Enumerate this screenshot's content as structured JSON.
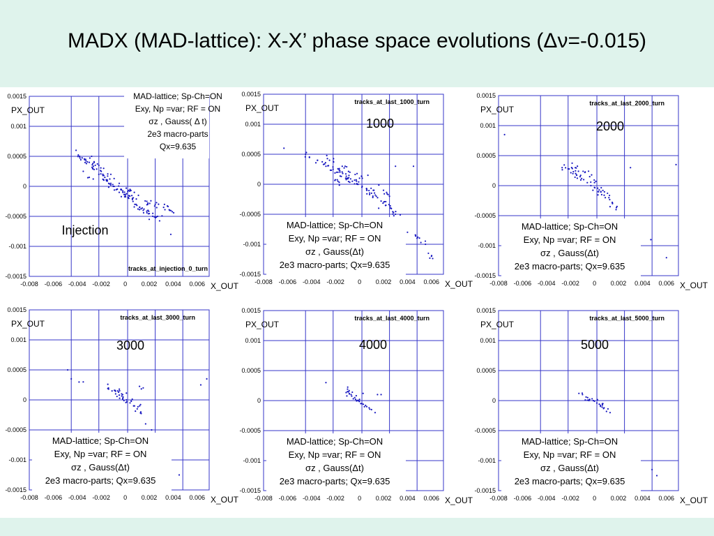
{
  "slide": {
    "title": "MADX (MAD-lattice): X-X’ phase space evolutions (Δν=-0.015)"
  },
  "colors": {
    "background": "#e4f5ef",
    "grid": "#3535c8",
    "points": "#1818c0",
    "axis_text": "#000000"
  },
  "axes": {
    "x_label": "X_OUT",
    "y_label": "PX_OUT",
    "xlim": [
      -0.008,
      0.007
    ],
    "ylim": [
      -0.0015,
      0.0015
    ],
    "x_ticks": [
      "-0.008",
      "-0.006",
      "-0.004",
      "-0.002",
      "0",
      "0.002",
      "0.004",
      "0.006"
    ],
    "y_ticks": [
      "0.0015",
      "0.001",
      "0.0005",
      "0",
      "-0.0005",
      "-0.001",
      "-0.0015"
    ],
    "x_tick_values": [
      -0.008,
      -0.006,
      -0.004,
      -0.002,
      0,
      0.002,
      0.004,
      0.006
    ],
    "y_tick_values": [
      0.0015,
      0.001,
      0.0005,
      0,
      -0.0005,
      -0.001,
      -0.0015
    ],
    "x_grid": [
      -0.0045,
      -0.0022,
      0.0002,
      0.0025,
      0.0048
    ],
    "y_grid": [
      0.0015,
      0.001,
      0.0005,
      0,
      -0.0005,
      -0.001,
      -0.0015
    ]
  },
  "chart_data": [
    {
      "type": "scatter",
      "plot_title": "tracks_at_injection_0_turn",
      "turn_label": "Injection",
      "info_lines": [
        "MAD-lattice; Sp-Ch=ON",
        "Exy, Np =var; RF = ON",
        "σz , Gauss( Δ t)",
        "2e3 macro-parts",
        "Qx=9.635"
      ],
      "xlabel": "X_OUT",
      "ylabel": "PX_OUT",
      "xlim": [
        -0.008,
        0.007
      ],
      "ylim": [
        -0.0015,
        0.0015
      ],
      "points": [
        [
          -0.0041,
          0.0006
        ],
        [
          -0.0038,
          0.0005
        ],
        [
          -0.0033,
          0.00045
        ],
        [
          -0.003,
          0.0004
        ],
        [
          -0.0027,
          0.0003
        ],
        [
          -0.0025,
          0.00035
        ],
        [
          -0.0022,
          0.0002
        ],
        [
          -0.002,
          0.00025
        ],
        [
          -0.0017,
          0.00015
        ],
        [
          -0.0015,
          0.0001
        ],
        [
          -0.0012,
          5e-05
        ],
        [
          -0.001,
          0.0
        ],
        [
          -0.0007,
          -5e-05
        ],
        [
          -0.0005,
          -0.0001
        ],
        [
          -0.0002,
          -0.0001
        ],
        [
          0.0,
          -0.00015
        ],
        [
          0.0003,
          -0.0002
        ],
        [
          0.0006,
          -0.0002
        ],
        [
          0.0009,
          -0.0003
        ],
        [
          0.0012,
          -0.00035
        ],
        [
          0.0015,
          -0.0004
        ],
        [
          0.0019,
          -0.0004
        ],
        [
          0.0023,
          -0.00045
        ],
        [
          0.0027,
          -0.0005
        ],
        [
          0.0032,
          -0.00035
        ],
        [
          0.0037,
          -0.0004
        ],
        [
          -0.003,
          0.00015
        ],
        [
          -0.0022,
          0.00035
        ],
        [
          -0.0012,
          0.0002
        ],
        [
          -0.0005,
          5e-05
        ],
        [
          0.0004,
          -5e-05
        ],
        [
          0.0011,
          -0.00015
        ],
        [
          0.0018,
          -0.00025
        ],
        [
          0.0025,
          -0.0003
        ],
        [
          -0.0035,
          0.00025
        ],
        [
          -0.0018,
          0.0003
        ],
        [
          0.0008,
          -0.0003
        ],
        [
          0.002,
          -0.00055
        ],
        [
          -0.0028,
          0.0005
        ],
        [
          0.0038,
          -0.0008
        ]
      ]
    },
    {
      "type": "scatter",
      "plot_title": "tracks_at_last_1000_turn",
      "turn_label": "1000",
      "info_lines": [
        "MAD-lattice; Sp-Ch=ON",
        "Exy, Np =var; RF = ON",
        "σz , Gauss(Δt)",
        "2e3 macro-parts; Qx=9.635"
      ],
      "xlabel": "X_OUT",
      "ylabel": "PX_OUT",
      "xlim": [
        -0.008,
        0.007
      ],
      "ylim": [
        -0.0015,
        0.0015
      ],
      "points": [
        [
          -0.0063,
          0.0006
        ],
        [
          -0.0045,
          0.0005
        ],
        [
          -0.0035,
          0.0004
        ],
        [
          -0.0028,
          0.0003
        ],
        [
          -0.0022,
          0.00025
        ],
        [
          -0.0018,
          0.0002
        ],
        [
          -0.0014,
          0.00018
        ],
        [
          -0.001,
          0.0001
        ],
        [
          -0.0006,
          5e-05
        ],
        [
          -0.0002,
          0.0
        ],
        [
          0.0002,
          -5e-05
        ],
        [
          0.0006,
          -0.0001
        ],
        [
          0.001,
          -0.00015
        ],
        [
          0.0014,
          -0.0002
        ],
        [
          0.0018,
          -0.00028
        ],
        [
          0.0022,
          -0.00035
        ],
        [
          0.0026,
          -0.0004
        ],
        [
          0.003,
          -0.0005
        ],
        [
          0.0034,
          -0.0006
        ],
        [
          0.004,
          -0.0008
        ],
        [
          0.0048,
          -0.0009
        ],
        [
          0.0055,
          -0.001
        ],
        [
          0.006,
          -0.0012
        ],
        [
          -0.0025,
          0.0004
        ],
        [
          -0.0012,
          0.0003
        ],
        [
          0.0,
          0.0001
        ],
        [
          0.0012,
          -0.0001
        ],
        [
          0.002,
          -0.0001
        ],
        [
          -0.0018,
          5e-05
        ],
        [
          0.0016,
          -0.0004
        ],
        [
          0.0007,
          0.00015
        ],
        [
          0.003,
          0.0003
        ],
        [
          0.0045,
          0.0003
        ],
        [
          -0.0008,
          0.0002
        ],
        [
          0.0025,
          -0.0002
        ]
      ]
    },
    {
      "type": "scatter",
      "plot_title": "tracks_at_last_2000_turn",
      "turn_label": "2000",
      "info_lines": [
        "MAD-lattice; Sp-Ch=ON",
        "Exy, Np =var; RF = ON",
        "σz , Gauss(Δt)",
        "2e3 macro-parts; Qx=9.635"
      ],
      "xlabel": "X_OUT",
      "ylabel": "PX_OUT",
      "xlim": [
        -0.008,
        0.007
      ],
      "ylim": [
        -0.0015,
        0.0015
      ],
      "points": [
        [
          -0.0075,
          0.00085
        ],
        [
          -0.0027,
          0.0003
        ],
        [
          -0.0022,
          0.00028
        ],
        [
          -0.0018,
          0.0002
        ],
        [
          -0.0015,
          0.00018
        ],
        [
          -0.0012,
          0.00015
        ],
        [
          -0.0009,
          0.0001
        ],
        [
          -0.0006,
          5e-05
        ],
        [
          -0.0003,
          0.0
        ],
        [
          0.0,
          -3e-05
        ],
        [
          0.0003,
          -0.0001
        ],
        [
          0.0006,
          -0.00015
        ],
        [
          0.0009,
          -0.0002
        ],
        [
          0.0012,
          -0.0002
        ],
        [
          0.0015,
          -0.0003
        ],
        [
          -0.0016,
          0.0003
        ],
        [
          -0.0008,
          0.00022
        ],
        [
          0.0,
          5e-05
        ],
        [
          0.0007,
          -8e-05
        ],
        [
          -0.0004,
          0.00015
        ],
        [
          0.0018,
          -0.0004
        ],
        [
          0.003,
          0.0003
        ],
        [
          0.0068,
          0.00035
        ],
        [
          0.0047,
          -0.0009
        ],
        [
          0.006,
          -0.0012
        ],
        [
          0.0013,
          -0.00035
        ]
      ]
    },
    {
      "type": "scatter",
      "plot_title": "tracks_at_last_3000_turn",
      "turn_label": "3000",
      "info_lines": [
        "MAD-lattice; Sp-Ch=ON",
        "Exy, Np =var; RF = ON",
        "σz , Gauss(Δt)",
        "2e3 macro-parts; Qx=9.635"
      ],
      "xlabel": "X_OUT",
      "ylabel": "PX_OUT",
      "xlim": [
        -0.008,
        0.007
      ],
      "ylim": [
        -0.0015,
        0.0015
      ],
      "points": [
        [
          -0.0048,
          0.0005
        ],
        [
          -0.0035,
          0.0003
        ],
        [
          -0.0014,
          0.0002
        ],
        [
          -0.0011,
          0.00015
        ],
        [
          -0.0008,
          0.0001
        ],
        [
          -0.0005,
          8e-05
        ],
        [
          -0.0002,
          3e-05
        ],
        [
          0.0001,
          0.0
        ],
        [
          0.0004,
          -5e-05
        ],
        [
          0.0007,
          -0.0001
        ],
        [
          0.001,
          -0.00015
        ],
        [
          0.0013,
          -0.0002
        ],
        [
          -0.0009,
          0.00016
        ],
        [
          -0.0003,
          0.0001
        ],
        [
          0.0005,
          -2e-05
        ],
        [
          0.0012,
          -0.0001
        ],
        [
          0.0015,
          0.0002
        ],
        [
          0.0017,
          -0.0004
        ],
        [
          0.0022,
          -0.0005
        ],
        [
          0.0045,
          -0.00125
        ],
        [
          0.0063,
          0.00025
        ],
        [
          0.0068,
          0.00035
        ],
        [
          -0.0045,
          0.00035
        ]
      ]
    },
    {
      "type": "scatter",
      "plot_title": "tracks_at_last_4000_turn",
      "turn_label": "4000",
      "info_lines": [
        "MAD-lattice; Sp-Ch=ON",
        "Exy, Np =var; RF = ON",
        "σz , Gauss(Δt)",
        "2e3 macro-parts; Qx=9.635"
      ],
      "xlabel": "X_OUT",
      "ylabel": "PX_OUT",
      "xlim": [
        -0.008,
        0.007
      ],
      "ylim": [
        -0.0015,
        0.0015
      ],
      "points": [
        [
          -0.0028,
          0.0003
        ],
        [
          -0.001,
          0.00015
        ],
        [
          -0.0007,
          0.0001
        ],
        [
          -0.0004,
          5e-05
        ],
        [
          -0.0001,
          0.0
        ],
        [
          0.0002,
          -5e-05
        ],
        [
          0.0005,
          -8e-05
        ],
        [
          0.0008,
          -0.00012
        ],
        [
          -0.0006,
          0.00014
        ],
        [
          0.0,
          2e-05
        ],
        [
          0.0006,
          -0.0001
        ],
        [
          0.001,
          -0.00015
        ],
        [
          0.0013,
          -0.0002
        ],
        [
          0.0015,
          0.0001
        ],
        [
          0.0018,
          0.0001
        ],
        [
          0.0003,
          0.00012
        ]
      ]
    },
    {
      "type": "scatter",
      "plot_title": "tracks_at_last_5000_turn",
      "turn_label": "5000",
      "info_lines": [
        "MAD-lattice; Sp-Ch=ON",
        "Exy, Np =var; RF = ON",
        "σz , Gauss(Δt)",
        "2e3 macro-parts; Qx=9.635"
      ],
      "xlabel": "X_OUT",
      "ylabel": "PX_OUT",
      "xlim": [
        -0.008,
        0.007
      ],
      "ylim": [
        -0.0015,
        0.0015
      ],
      "points": [
        [
          -0.0013,
          0.00012
        ],
        [
          -0.001,
          0.0001
        ],
        [
          -0.0007,
          6e-05
        ],
        [
          -0.0004,
          2e-05
        ],
        [
          -0.0001,
          0.0
        ],
        [
          0.0002,
          -4e-05
        ],
        [
          0.0005,
          -8e-05
        ],
        [
          0.0008,
          -0.00012
        ],
        [
          0.001,
          -0.00018
        ],
        [
          0.0013,
          -0.0002
        ],
        [
          -0.0002,
          3e-05
        ],
        [
          0.0004,
          -6e-05
        ],
        [
          0.0007,
          -5e-05
        ],
        [
          0.0048,
          -0.00115
        ],
        [
          0.0052,
          -0.00125
        ]
      ]
    }
  ]
}
